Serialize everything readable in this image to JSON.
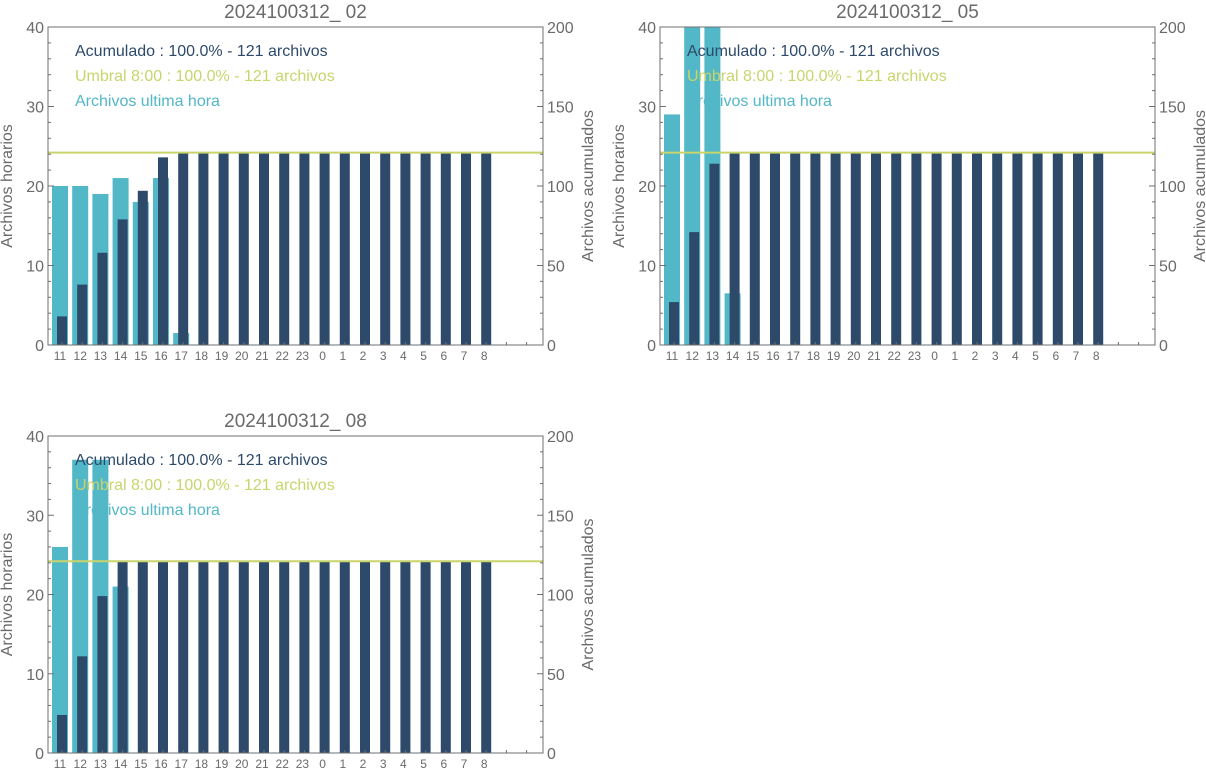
{
  "colors": {
    "hourly": "#52b7c7",
    "cumulative": "#2d4a6a",
    "threshold": "#c9d46b",
    "axis": "#6f6f6f",
    "text": "#6a6a6a"
  },
  "chart_data": [
    {
      "type": "bar",
      "title": "2024100312_ 02",
      "ylabel": "Archivos horarios",
      "y2label": "Archivos acumulados",
      "categories": [
        "11",
        "12",
        "13",
        "14",
        "15",
        "16",
        "17",
        "18",
        "19",
        "20",
        "21",
        "22",
        "23",
        "0",
        "1",
        "2",
        "3",
        "4",
        "5",
        "6",
        "7",
        "8"
      ],
      "ylim": [
        0,
        40
      ],
      "y2lim": [
        0,
        200
      ],
      "yticks": [
        0,
        10,
        20,
        30,
        40
      ],
      "y2ticks": [
        0,
        50,
        100,
        150,
        200
      ],
      "legend": [
        "Acumulado : 100.0% - 121 archivos",
        "Umbral 8:00 : 100.0% - 121 archivos",
        "Archivos ultima hora"
      ],
      "legend_position": "top-left",
      "threshold": 121,
      "series": [
        {
          "name": "Archivos ultima hora",
          "axis": "left",
          "values": [
            20,
            20,
            19,
            21,
            18,
            21,
            1.5,
            null,
            null,
            null,
            null,
            null,
            null,
            null,
            null,
            null,
            null,
            null,
            null,
            null,
            null,
            null
          ]
        },
        {
          "name": "Acumulado",
          "axis": "right",
          "values": [
            18,
            38,
            58,
            79,
            97,
            118,
            121,
            121,
            121,
            121,
            121,
            121,
            121,
            121,
            121,
            121,
            121,
            121,
            121,
            121,
            121,
            121
          ]
        }
      ]
    },
    {
      "type": "bar",
      "title": "2024100312_ 05",
      "ylabel": "Archivos horarios",
      "y2label": "Archivos acumulados",
      "categories": [
        "11",
        "12",
        "13",
        "14",
        "15",
        "16",
        "17",
        "18",
        "19",
        "20",
        "21",
        "22",
        "23",
        "0",
        "1",
        "2",
        "3",
        "4",
        "5",
        "6",
        "7",
        "8"
      ],
      "ylim": [
        0,
        40
      ],
      "y2lim": [
        0,
        200
      ],
      "yticks": [
        0,
        10,
        20,
        30,
        40
      ],
      "y2ticks": [
        0,
        50,
        100,
        150,
        200
      ],
      "legend": [
        "Acumulado : 100.0% - 121 archivos",
        "Umbral 8:00 : 100.0% - 121 archivos",
        "Archivos ultima hora"
      ],
      "legend_position": "top-left",
      "threshold": 121,
      "series": [
        {
          "name": "Archivos ultima hora",
          "axis": "left",
          "values": [
            29,
            44,
            42.5,
            6.5,
            null,
            null,
            null,
            null,
            null,
            null,
            null,
            null,
            null,
            null,
            null,
            null,
            null,
            null,
            null,
            null,
            null,
            null
          ]
        },
        {
          "name": "Acumulado",
          "axis": "right",
          "values": [
            27,
            71,
            114,
            121,
            121,
            121,
            121,
            121,
            121,
            121,
            121,
            121,
            121,
            121,
            121,
            121,
            121,
            121,
            121,
            121,
            121,
            121
          ]
        }
      ]
    },
    {
      "type": "bar",
      "title": "2024100312_ 08",
      "ylabel": "Archivos horarios",
      "y2label": "Archivos acumulados",
      "categories": [
        "11",
        "12",
        "13",
        "14",
        "15",
        "16",
        "17",
        "18",
        "19",
        "20",
        "21",
        "22",
        "23",
        "0",
        "1",
        "2",
        "3",
        "4",
        "5",
        "6",
        "7",
        "8"
      ],
      "ylim": [
        0,
        40
      ],
      "y2lim": [
        0,
        200
      ],
      "yticks": [
        0,
        10,
        20,
        30,
        40
      ],
      "y2ticks": [
        0,
        50,
        100,
        150,
        200
      ],
      "legend": [
        "Acumulado : 100.0% - 121 archivos",
        "Umbral 8:00 : 100.0% - 121 archivos",
        "Archivos ultima hora"
      ],
      "legend_position": "top-left",
      "threshold": 121,
      "series": [
        {
          "name": "Archivos ultima hora",
          "axis": "left",
          "values": [
            26,
            37,
            37,
            21,
            null,
            null,
            null,
            null,
            null,
            null,
            null,
            null,
            null,
            null,
            null,
            null,
            null,
            null,
            null,
            null,
            null,
            null
          ]
        },
        {
          "name": "Acumulado",
          "axis": "right",
          "values": [
            24,
            61,
            99,
            121,
            121,
            121,
            121,
            121,
            121,
            121,
            121,
            121,
            121,
            121,
            121,
            121,
            121,
            121,
            121,
            121,
            121,
            121
          ]
        }
      ]
    }
  ]
}
